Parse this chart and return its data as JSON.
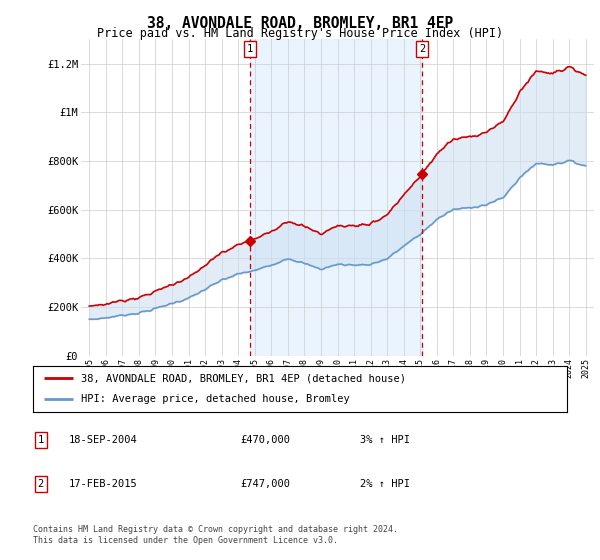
{
  "title": "38, AVONDALE ROAD, BROMLEY, BR1 4EP",
  "subtitle": "Price paid vs. HM Land Registry's House Price Index (HPI)",
  "ylabel_ticks": [
    "£0",
    "£200K",
    "£400K",
    "£600K",
    "£800K",
    "£1M",
    "£1.2M"
  ],
  "ytick_values": [
    0,
    200000,
    400000,
    600000,
    800000,
    1000000,
    1200000
  ],
  "ylim": [
    0,
    1300000
  ],
  "xlim_start": 1994.5,
  "xlim_end": 2025.5,
  "sale1_x": 2004.72,
  "sale1_y": 470000,
  "sale2_x": 2015.12,
  "sale2_y": 747000,
  "sale1_label": "1",
  "sale2_label": "2",
  "line_color_red": "#cc0000",
  "line_color_blue": "#6699cc",
  "fill_color": "#cde0f0",
  "shade_region_color": "#ddeeff",
  "vline_color": "#cc0000",
  "legend_line1": "38, AVONDALE ROAD, BROMLEY, BR1 4EP (detached house)",
  "legend_line2": "HPI: Average price, detached house, Bromley",
  "table_row1": [
    "1",
    "18-SEP-2004",
    "£470,000",
    "3% ↑ HPI"
  ],
  "table_row2": [
    "2",
    "17-FEB-2015",
    "£747,000",
    "2% ↑ HPI"
  ],
  "footnote": "Contains HM Land Registry data © Crown copyright and database right 2024.\nThis data is licensed under the Open Government Licence v3.0.",
  "background_color": "#ffffff",
  "plot_bg_color": "#ffffff",
  "grid_color": "#cccccc",
  "title_fontsize": 11,
  "subtitle_fontsize": 9,
  "hpi_years": [
    1995.0,
    1995.08,
    1995.17,
    1995.25,
    1995.33,
    1995.42,
    1995.5,
    1995.58,
    1995.67,
    1995.75,
    1995.83,
    1995.92,
    1996.0,
    1996.08,
    1996.17,
    1996.25,
    1996.33,
    1996.42,
    1996.5,
    1996.58,
    1996.67,
    1996.75,
    1996.83,
    1996.92,
    1997.0,
    1997.08,
    1997.17,
    1997.25,
    1997.33,
    1997.42,
    1997.5,
    1997.58,
    1997.67,
    1997.75,
    1997.83,
    1997.92,
    1998.0,
    1998.08,
    1998.17,
    1998.25,
    1998.33,
    1998.42,
    1998.5,
    1998.58,
    1998.67,
    1998.75,
    1998.83,
    1998.92,
    1999.0,
    1999.08,
    1999.17,
    1999.25,
    1999.33,
    1999.42,
    1999.5,
    1999.58,
    1999.67,
    1999.75,
    1999.83,
    1999.92,
    2000.0,
    2000.08,
    2000.17,
    2000.25,
    2000.33,
    2000.42,
    2000.5,
    2000.58,
    2000.67,
    2000.75,
    2000.83,
    2000.92,
    2001.0,
    2001.08,
    2001.17,
    2001.25,
    2001.33,
    2001.42,
    2001.5,
    2001.58,
    2001.67,
    2001.75,
    2001.83,
    2001.92,
    2002.0,
    2002.08,
    2002.17,
    2002.25,
    2002.33,
    2002.42,
    2002.5,
    2002.58,
    2002.67,
    2002.75,
    2002.83,
    2002.92,
    2003.0,
    2003.08,
    2003.17,
    2003.25,
    2003.33,
    2003.42,
    2003.5,
    2003.58,
    2003.67,
    2003.75,
    2003.83,
    2003.92,
    2004.0,
    2004.08,
    2004.17,
    2004.25,
    2004.33,
    2004.42,
    2004.5,
    2004.58,
    2004.67,
    2004.75,
    2004.83,
    2004.92,
    2005.0,
    2005.08,
    2005.17,
    2005.25,
    2005.33,
    2005.42,
    2005.5,
    2005.58,
    2005.67,
    2005.75,
    2005.83,
    2005.92,
    2006.0,
    2006.08,
    2006.17,
    2006.25,
    2006.33,
    2006.42,
    2006.5,
    2006.58,
    2006.67,
    2006.75,
    2006.83,
    2006.92,
    2007.0,
    2007.08,
    2007.17,
    2007.25,
    2007.33,
    2007.42,
    2007.5,
    2007.58,
    2007.67,
    2007.75,
    2007.83,
    2007.92,
    2008.0,
    2008.08,
    2008.17,
    2008.25,
    2008.33,
    2008.42,
    2008.5,
    2008.58,
    2008.67,
    2008.75,
    2008.83,
    2008.92,
    2009.0,
    2009.08,
    2009.17,
    2009.25,
    2009.33,
    2009.42,
    2009.5,
    2009.58,
    2009.67,
    2009.75,
    2009.83,
    2009.92,
    2010.0,
    2010.08,
    2010.17,
    2010.25,
    2010.33,
    2010.42,
    2010.5,
    2010.58,
    2010.67,
    2010.75,
    2010.83,
    2010.92,
    2011.0,
    2011.08,
    2011.17,
    2011.25,
    2011.33,
    2011.42,
    2011.5,
    2011.58,
    2011.67,
    2011.75,
    2011.83,
    2011.92,
    2012.0,
    2012.08,
    2012.17,
    2012.25,
    2012.33,
    2012.42,
    2012.5,
    2012.58,
    2012.67,
    2012.75,
    2012.83,
    2012.92,
    2013.0,
    2013.08,
    2013.17,
    2013.25,
    2013.33,
    2013.42,
    2013.5,
    2013.58,
    2013.67,
    2013.75,
    2013.83,
    2013.92,
    2014.0,
    2014.08,
    2014.17,
    2014.25,
    2014.33,
    2014.42,
    2014.5,
    2014.58,
    2014.67,
    2014.75,
    2014.83,
    2014.92,
    2015.0,
    2015.08,
    2015.17,
    2015.25,
    2015.33,
    2015.42,
    2015.5,
    2015.58,
    2015.67,
    2015.75,
    2015.83,
    2015.92,
    2016.0,
    2016.08,
    2016.17,
    2016.25,
    2016.33,
    2016.42,
    2016.5,
    2016.58,
    2016.67,
    2016.75,
    2016.83,
    2016.92,
    2017.0,
    2017.08,
    2017.17,
    2017.25,
    2017.33,
    2017.42,
    2017.5,
    2017.58,
    2017.67,
    2017.75,
    2017.83,
    2017.92,
    2018.0,
    2018.08,
    2018.17,
    2018.25,
    2018.33,
    2018.42,
    2018.5,
    2018.58,
    2018.67,
    2018.75,
    2018.83,
    2018.92,
    2019.0,
    2019.08,
    2019.17,
    2019.25,
    2019.33,
    2019.42,
    2019.5,
    2019.58,
    2019.67,
    2019.75,
    2019.83,
    2019.92,
    2020.0,
    2020.08,
    2020.17,
    2020.25,
    2020.33,
    2020.42,
    2020.5,
    2020.58,
    2020.67,
    2020.75,
    2020.83,
    2020.92,
    2021.0,
    2021.08,
    2021.17,
    2021.25,
    2021.33,
    2021.42,
    2021.5,
    2021.58,
    2021.67,
    2021.75,
    2021.83,
    2021.92,
    2022.0,
    2022.08,
    2022.17,
    2022.25,
    2022.33,
    2022.42,
    2022.5,
    2022.58,
    2022.67,
    2022.75,
    2022.83,
    2022.92,
    2023.0,
    2023.08,
    2023.17,
    2023.25,
    2023.33,
    2023.42,
    2023.5,
    2023.58,
    2023.67,
    2023.75,
    2023.83,
    2023.92,
    2024.0,
    2024.08,
    2024.17,
    2024.25,
    2024.33,
    2024.42,
    2024.5,
    2024.58,
    2024.67,
    2024.75,
    2024.83,
    2024.92,
    2025.0
  ]
}
